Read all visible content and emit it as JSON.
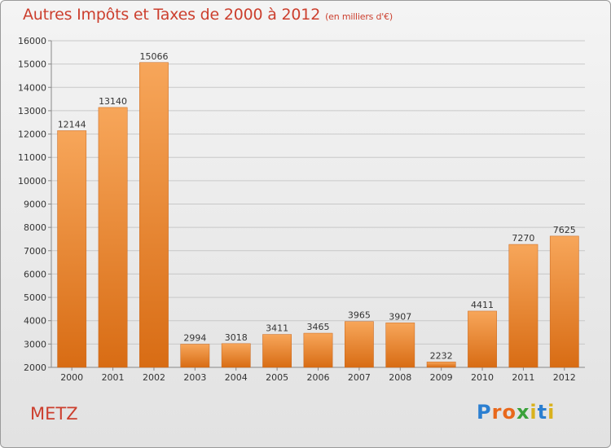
{
  "header": {
    "title": "Autres Impôts et Taxes de 2000 à 2012",
    "subtitle": "(en milliers d'€)"
  },
  "footer": {
    "place": "METZ",
    "logo_text": "Proxiti",
    "logo_colors": [
      "#2b7fd1",
      "#e8681c",
      "#e8681c",
      "#3aa23a",
      "#d9b21d",
      "#2b7fd1",
      "#d9b21d"
    ]
  },
  "colors": {
    "bar_top": "#f7a65a",
    "bar_bottom": "#d86c14",
    "grid": "#c8c8c8",
    "title": "#cc3f2e"
  },
  "chart_data": {
    "type": "bar",
    "categories": [
      "2000",
      "2001",
      "2002",
      "2003",
      "2004",
      "2005",
      "2006",
      "2007",
      "2008",
      "2009",
      "2010",
      "2011",
      "2012"
    ],
    "values": [
      12144,
      13140,
      15066,
      2994,
      3018,
      3411,
      3465,
      3965,
      3907,
      2232,
      4411,
      7270,
      7625
    ],
    "title": "Autres Impôts et Taxes de 2000 à 2012",
    "subtitle": "(en milliers d'€)",
    "ylim": [
      2000,
      16000
    ],
    "yticks": [
      2000,
      3000,
      4000,
      5000,
      6000,
      7000,
      8000,
      9000,
      10000,
      11000,
      12000,
      13000,
      14000,
      15000,
      16000
    ],
    "grid": true,
    "data_labels": true
  }
}
